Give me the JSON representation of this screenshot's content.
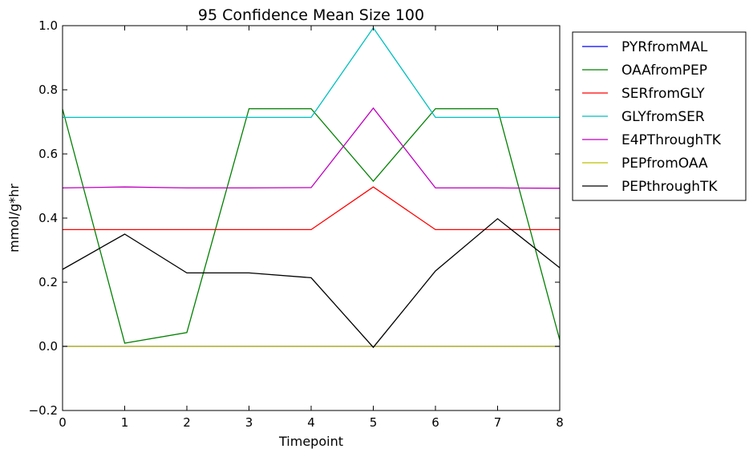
{
  "chart_data": {
    "type": "line",
    "title": "95 Confidence Mean Size 100",
    "xlabel": "Timepoint",
    "ylabel": "mmol/g*hr",
    "xlim": [
      0,
      8
    ],
    "ylim": [
      -0.2,
      1.0
    ],
    "xticks": [
      "0",
      "1",
      "2",
      "3",
      "4",
      "5",
      "6",
      "7",
      "8"
    ],
    "yticks": [
      "−0.2",
      "0.0",
      "0.2",
      "0.4",
      "0.6",
      "0.8",
      "1.0"
    ],
    "yticks_values": [
      -0.2,
      0.0,
      0.2,
      0.4,
      0.6,
      0.8,
      1.0
    ],
    "grid": false,
    "legend_position": "outside-right",
    "x": [
      0,
      1,
      2,
      3,
      4,
      5,
      6,
      7,
      8
    ],
    "series": [
      {
        "name": "PYRfromMAL",
        "color": "#0000ff",
        "values": [
          0.0,
          0.0,
          0.0,
          0.0,
          0.0,
          0.0,
          0.0,
          0.0,
          0.0
        ]
      },
      {
        "name": "OAAfromPEP",
        "color": "#008000",
        "values": [
          0.74,
          0.01,
          0.043,
          0.741,
          0.741,
          0.515,
          0.741,
          0.741,
          0.02
        ]
      },
      {
        "name": "SERfromGLY",
        "color": "#ff0000",
        "values": [
          0.364,
          0.364,
          0.364,
          0.364,
          0.364,
          0.497,
          0.364,
          0.364,
          0.364
        ]
      },
      {
        "name": "GLYfromSER",
        "color": "#00bfbf",
        "values": [
          0.714,
          0.714,
          0.714,
          0.714,
          0.714,
          0.993,
          0.714,
          0.714,
          0.714
        ]
      },
      {
        "name": "E4PThroughTK",
        "color": "#bf00bf",
        "values": [
          0.494,
          0.497,
          0.494,
          0.494,
          0.495,
          0.743,
          0.494,
          0.494,
          0.493
        ]
      },
      {
        "name": "PEPfromOAA",
        "color": "#bfbf00",
        "values": [
          0.0,
          0.0,
          0.0,
          0.0,
          0.0,
          0.0,
          0.0,
          0.0,
          0.0
        ]
      },
      {
        "name": "PEPthroughTK",
        "color": "#000000",
        "values": [
          0.24,
          0.35,
          0.229,
          0.229,
          0.214,
          -0.003,
          0.235,
          0.398,
          0.245
        ]
      }
    ]
  }
}
